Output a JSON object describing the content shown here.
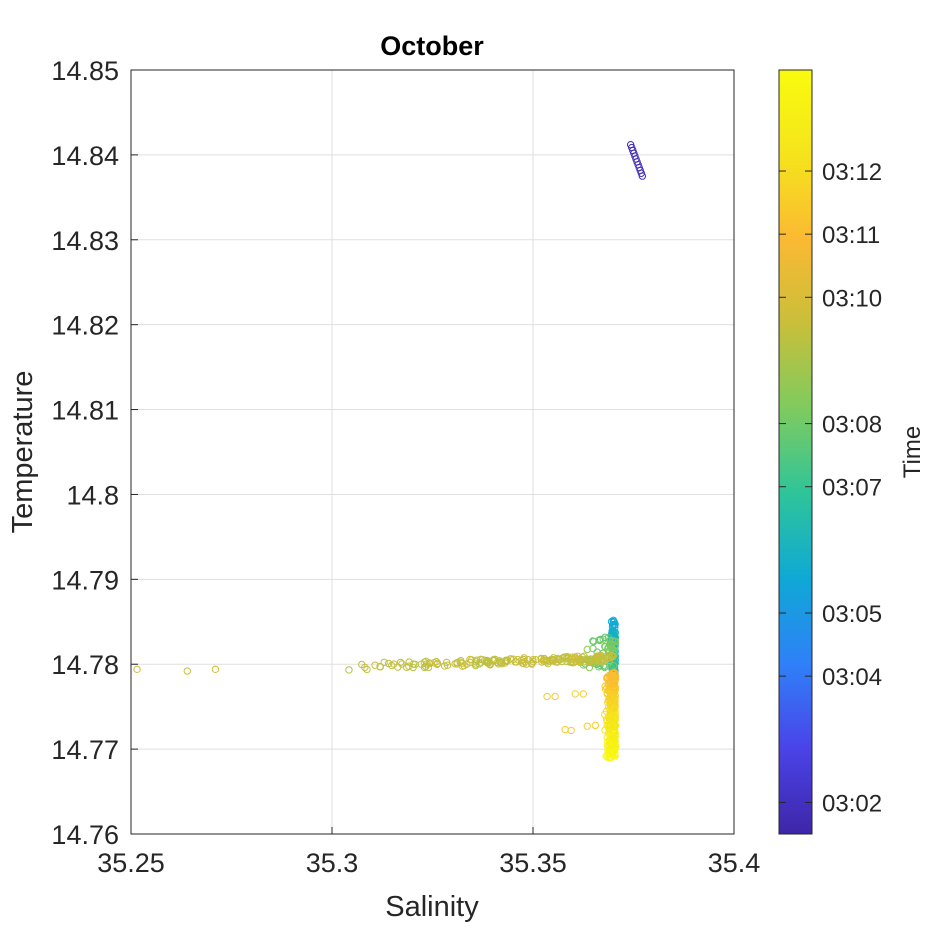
{
  "chart_data": {
    "type": "scatter",
    "title": "October",
    "xlabel": "Salinity",
    "ylabel": "Temperature",
    "xlim": [
      35.25,
      35.4
    ],
    "ylim": [
      14.76,
      14.85
    ],
    "xticks": [
      "35.25",
      "35.3",
      "35.35",
      "35.4"
    ],
    "yticks": [
      "14.76",
      "14.77",
      "14.78",
      "14.79",
      "14.8",
      "14.81",
      "14.82",
      "14.83",
      "14.84",
      "14.85"
    ],
    "grid": true,
    "marker": "open-circle",
    "colorbar": {
      "label": "Time",
      "colormap": "parula",
      "colors": [
        "#3e26a8",
        "#4a43e8",
        "#2f80f8",
        "#0fa8d6",
        "#2ec49a",
        "#7ecb5f",
        "#c8bf3a",
        "#fbb933",
        "#f5e41c",
        "#f9fb0e"
      ],
      "range_minutes": [
        1.5,
        13.6
      ],
      "tick_labels": [
        "03:02",
        "03:04",
        "03:05",
        "03:07",
        "03:08",
        "03:10",
        "03:11",
        "03:12"
      ],
      "tick_minutes": [
        2,
        4,
        5,
        7,
        8,
        10,
        11,
        12
      ]
    },
    "clusters": [
      {
        "description": "early profile",
        "time_min": 1.6,
        "s_range": [
          35.3743,
          35.3772
        ],
        "t_range": [
          14.8375,
          14.8412
        ]
      },
      {
        "description": "blue vertical column",
        "time_min": 5.5,
        "s_range": [
          35.3695,
          35.3705
        ],
        "t_range": [
          14.778,
          14.7852
        ]
      },
      {
        "description": "teal spread",
        "time_min": 7.5,
        "s_range": [
          35.362,
          35.3705
        ],
        "t_range": [
          14.7795,
          14.7835
        ]
      },
      {
        "description": "green horizontal streak",
        "time_min": 9.5,
        "s_range": [
          35.303,
          35.37
        ],
        "t_range": [
          14.7793,
          14.781
        ]
      },
      {
        "description": "green outliers",
        "time_min": 9.6,
        "points": [
          [
            35.2515,
            14.7794
          ],
          [
            35.264,
            14.7792
          ],
          [
            35.271,
            14.7794
          ]
        ]
      },
      {
        "description": "orange/yellow lower column",
        "time_min": 12.0,
        "s_range": [
          35.3675,
          35.3705
        ],
        "t_range": [
          14.769,
          14.779
        ]
      },
      {
        "description": "orange side points",
        "time_min": 11.5,
        "points": [
          [
            35.3535,
            14.7762
          ],
          [
            35.3555,
            14.7762
          ],
          [
            35.3605,
            14.7765
          ],
          [
            35.3625,
            14.7765
          ],
          [
            35.358,
            14.7723
          ],
          [
            35.3595,
            14.7722
          ],
          [
            35.3635,
            14.7727
          ],
          [
            35.3655,
            14.7728
          ]
        ]
      }
    ]
  }
}
